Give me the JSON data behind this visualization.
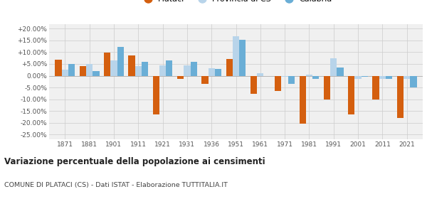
{
  "years": [
    1871,
    1881,
    1901,
    1911,
    1921,
    1931,
    1936,
    1951,
    1961,
    1971,
    1981,
    1991,
    2001,
    2011,
    2021
  ],
  "plataci": [
    6.7,
    4.0,
    9.8,
    8.7,
    -16.3,
    -1.5,
    -3.5,
    7.0,
    -7.8,
    -6.5,
    -20.5,
    -10.0,
    -16.5,
    -10.0,
    -18.0
  ],
  "provincia_cs": [
    2.5,
    5.0,
    6.5,
    4.0,
    4.5,
    4.5,
    3.2,
    16.7,
    1.0,
    -0.5,
    0.5,
    7.5,
    -1.5,
    -1.5,
    -1.5
  ],
  "calabria": [
    5.0,
    2.0,
    12.2,
    6.0,
    6.5,
    5.8,
    2.8,
    15.2,
    -0.2,
    -3.5,
    -1.5,
    3.5,
    -0.5,
    -1.5,
    -5.0
  ],
  "color_plataci": "#d45f0f",
  "color_provincia": "#b8d4ea",
  "color_calabria": "#6aaed6",
  "title": "Variazione percentuale della popolazione ai censimenti",
  "subtitle": "COMUNE DI PLATACI (CS) - Dati ISTAT - Elaborazione TUTTITALIA.IT",
  "ylim": [
    -27,
    22
  ],
  "yticks": [
    -25,
    -20,
    -15,
    -10,
    -5,
    0,
    5,
    10,
    15,
    20
  ],
  "background_color": "#f0f0f0"
}
